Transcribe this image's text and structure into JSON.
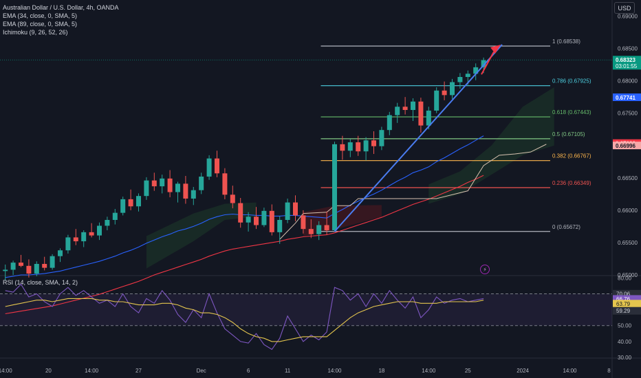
{
  "legend": {
    "symbol_title": "Australian Dollar / U.S. Dollar, 4h, OANDA",
    "indicators": [
      "EMA (34, close, 0, SMA, 5)",
      "EMA (89, close, 0, SMA, 5)",
      "Ichimoku (9, 26, 52, 26)"
    ]
  },
  "currency_button": "USD",
  "rsi_legend": "RSI (14, close, SMA, 14, 2)",
  "lightning_icon": "lightning-icon",
  "colors": {
    "background": "#131722",
    "up": "#26a69a",
    "down": "#ef5350",
    "ema34": "#2962ff",
    "ema89": "#f23645",
    "rsi": "#7e57c2",
    "rsi_ma": "#e5c64e",
    "trendline": "#4a7cf0",
    "arrow": "#f23645"
  },
  "chart_data": {
    "type": "candlestick",
    "price_axis": {
      "ticks": [
        {
          "value": 0.69,
          "label": "0.69000"
        },
        {
          "value": 0.685,
          "label": "0.68500"
        },
        {
          "value": 0.68,
          "label": "0.68000"
        },
        {
          "value": 0.675,
          "label": "0.67500"
        },
        {
          "value": 0.67,
          "label": "0.67000"
        },
        {
          "value": 0.665,
          "label": "0.66500"
        },
        {
          "value": 0.66,
          "label": "0.66000"
        },
        {
          "value": 0.655,
          "label": "0.65500"
        },
        {
          "value": 0.65,
          "label": "0.65000"
        }
      ],
      "range": [
        0.65,
        0.6925
      ]
    },
    "price_badges": [
      {
        "value": 0.68323,
        "label": "0.68323",
        "sub": "03:01:55",
        "color": "#089981"
      },
      {
        "value": 0.67741,
        "label": "0.67741",
        "color": "#2962ff"
      },
      {
        "value": 0.67033,
        "label": "0.67033",
        "color": "#f23645"
      },
      {
        "value": 0.66996,
        "label": "0.66996",
        "color": "#f7a9a8",
        "text_color": "#131722"
      }
    ],
    "time_axis": {
      "labels": [
        "14:00",
        "20",
        "14:00",
        "27",
        "Dec",
        "6",
        "11",
        "14:00",
        "18",
        "14:00",
        "25",
        "2024",
        "14:00",
        "8"
      ],
      "positions": [
        0,
        5.5,
        11,
        17,
        25,
        31,
        36,
        42,
        48,
        54,
        59,
        66,
        72,
        77
      ]
    },
    "fibonacci": [
      {
        "ratio": "1",
        "label": "1 (0.68538)",
        "value": 0.68538,
        "color": "#b2b5be"
      },
      {
        "ratio": "0.786",
        "label": "0.786 (0.67925)",
        "value": 0.67925,
        "color": "#4dd0e1"
      },
      {
        "ratio": "0.618",
        "label": "0.618 (0.67443)",
        "value": 0.67443,
        "color": "#66bb6a"
      },
      {
        "ratio": "0.5",
        "label": "0.5 (0.67105)",
        "value": 0.67105,
        "color": "#81c784"
      },
      {
        "ratio": "0.382",
        "label": "0.382 (0.66767)",
        "value": 0.66767,
        "color": "#ffb74d"
      },
      {
        "ratio": "0.236",
        "label": "0.236 (0.66349)",
        "value": 0.66349,
        "color": "#ef5350"
      },
      {
        "ratio": "0",
        "label": "0 (0.65672)",
        "value": 0.65672,
        "color": "#b2b5be"
      }
    ],
    "fib_start_bar": 42,
    "current_price": 0.68323,
    "candles": [
      [
        0.6506,
        0.6516,
        0.6492,
        0.6508
      ],
      [
        0.6508,
        0.6522,
        0.65,
        0.6519
      ],
      [
        0.6519,
        0.6531,
        0.6512,
        0.6514
      ],
      [
        0.6514,
        0.6524,
        0.6496,
        0.6502
      ],
      [
        0.6502,
        0.6521,
        0.6498,
        0.6517
      ],
      [
        0.6517,
        0.6528,
        0.6507,
        0.6511
      ],
      [
        0.6511,
        0.6532,
        0.6508,
        0.6529
      ],
      [
        0.6529,
        0.6541,
        0.652,
        0.6538
      ],
      [
        0.6538,
        0.6562,
        0.6533,
        0.6558
      ],
      [
        0.6558,
        0.6571,
        0.6546,
        0.6552
      ],
      [
        0.6552,
        0.6569,
        0.6543,
        0.6566
      ],
      [
        0.6566,
        0.658,
        0.6558,
        0.6561
      ],
      [
        0.6561,
        0.6581,
        0.6554,
        0.6576
      ],
      [
        0.6576,
        0.659,
        0.6569,
        0.6585
      ],
      [
        0.6585,
        0.6602,
        0.6578,
        0.6596
      ],
      [
        0.6596,
        0.6621,
        0.6592,
        0.6617
      ],
      [
        0.6617,
        0.6632,
        0.66,
        0.6606
      ],
      [
        0.6606,
        0.6626,
        0.6598,
        0.6622
      ],
      [
        0.6622,
        0.6651,
        0.6616,
        0.6646
      ],
      [
        0.6646,
        0.6658,
        0.663,
        0.6637
      ],
      [
        0.6637,
        0.6655,
        0.6626,
        0.6649
      ],
      [
        0.6649,
        0.6662,
        0.662,
        0.6628
      ],
      [
        0.6628,
        0.6644,
        0.6612,
        0.6641
      ],
      [
        0.6641,
        0.6653,
        0.661,
        0.6618
      ],
      [
        0.6618,
        0.6636,
        0.6608,
        0.6631
      ],
      [
        0.6631,
        0.6658,
        0.6625,
        0.6652
      ],
      [
        0.6652,
        0.6685,
        0.6647,
        0.668
      ],
      [
        0.668,
        0.6692,
        0.6651,
        0.6657
      ],
      [
        0.6657,
        0.6665,
        0.6617,
        0.6624
      ],
      [
        0.6624,
        0.6638,
        0.6603,
        0.6611
      ],
      [
        0.6611,
        0.6619,
        0.6573,
        0.6581
      ],
      [
        0.6581,
        0.6597,
        0.6567,
        0.659
      ],
      [
        0.659,
        0.6605,
        0.6571,
        0.6577
      ],
      [
        0.6577,
        0.6604,
        0.6574,
        0.6599
      ],
      [
        0.6599,
        0.6609,
        0.6561,
        0.6566
      ],
      [
        0.6566,
        0.6591,
        0.6548,
        0.6585
      ],
      [
        0.6585,
        0.6618,
        0.658,
        0.6612
      ],
      [
        0.6612,
        0.6623,
        0.6583,
        0.6592
      ],
      [
        0.6592,
        0.66,
        0.6564,
        0.6571
      ],
      [
        0.6571,
        0.6586,
        0.6557,
        0.6563
      ],
      [
        0.6563,
        0.6583,
        0.6554,
        0.6577
      ],
      [
        0.6577,
        0.6598,
        0.6562,
        0.6569
      ],
      [
        0.6569,
        0.6706,
        0.6567,
        0.6702
      ],
      [
        0.6702,
        0.6715,
        0.6678,
        0.6692
      ],
      [
        0.6692,
        0.671,
        0.6682,
        0.6705
      ],
      [
        0.6705,
        0.6715,
        0.6684,
        0.6691
      ],
      [
        0.6691,
        0.6713,
        0.6677,
        0.6708
      ],
      [
        0.6708,
        0.6722,
        0.6687,
        0.6699
      ],
      [
        0.6699,
        0.6729,
        0.6693,
        0.6724
      ],
      [
        0.6724,
        0.6752,
        0.6716,
        0.6747
      ],
      [
        0.6747,
        0.6766,
        0.6735,
        0.676
      ],
      [
        0.676,
        0.6775,
        0.6748,
        0.6755
      ],
      [
        0.6755,
        0.6773,
        0.6738,
        0.6768
      ],
      [
        0.6768,
        0.6774,
        0.672,
        0.6731
      ],
      [
        0.6731,
        0.676,
        0.6725,
        0.6754
      ],
      [
        0.6754,
        0.679,
        0.675,
        0.6785
      ],
      [
        0.6785,
        0.6799,
        0.677,
        0.6778
      ],
      [
        0.6778,
        0.6803,
        0.6772,
        0.6798
      ],
      [
        0.6798,
        0.6812,
        0.6788,
        0.6806
      ],
      [
        0.6806,
        0.6816,
        0.6794,
        0.6811
      ],
      [
        0.6811,
        0.6827,
        0.6801,
        0.6821
      ],
      [
        0.6821,
        0.6836,
        0.6812,
        0.6832
      ]
    ],
    "ema34": [
      0.6496,
      0.6498,
      0.65,
      0.65,
      0.6501,
      0.6502,
      0.6504,
      0.6506,
      0.6509,
      0.6512,
      0.6515,
      0.6518,
      0.6521,
      0.6525,
      0.6529,
      0.6534,
      0.6538,
      0.6543,
      0.6549,
      0.6554,
      0.6559,
      0.6563,
      0.6568,
      0.6571,
      0.6575,
      0.658,
      0.6586,
      0.659,
      0.6593,
      0.6594,
      0.6593,
      0.6593,
      0.6592,
      0.6592,
      0.6591,
      0.6591,
      0.6592,
      0.6592,
      0.6591,
      0.659,
      0.6589,
      0.6588,
      0.6595,
      0.6601,
      0.6608,
      0.6614,
      0.662,
      0.6625,
      0.6631,
      0.6638,
      0.6645,
      0.6651,
      0.6658,
      0.6662,
      0.6667,
      0.6675,
      0.6681,
      0.6688,
      0.6695,
      0.6701,
      0.6708,
      0.6715
    ],
    "ema89": [
      0.644,
      0.6442,
      0.6444,
      0.6446,
      0.6448,
      0.645,
      0.6452,
      0.6455,
      0.6458,
      0.6461,
      0.6464,
      0.6467,
      0.647,
      0.6474,
      0.6478,
      0.6482,
      0.6486,
      0.649,
      0.6495,
      0.65,
      0.6504,
      0.6508,
      0.6512,
      0.6516,
      0.652,
      0.6524,
      0.6529,
      0.6533,
      0.6537,
      0.654,
      0.6542,
      0.6544,
      0.6546,
      0.6548,
      0.655,
      0.6552,
      0.6555,
      0.6557,
      0.6559,
      0.656,
      0.6561,
      0.6562,
      0.6565,
      0.6569,
      0.6573,
      0.6577,
      0.6581,
      0.6585,
      0.6589,
      0.6594,
      0.6599,
      0.6604,
      0.6609,
      0.6613,
      0.6617,
      0.6622,
      0.6627,
      0.6632,
      0.6637,
      0.6643,
      0.6648,
      0.6654
    ],
    "ichimoku_lagging": [
      [
        35,
        0.6555
      ],
      [
        37,
        0.658
      ],
      [
        38,
        0.6595
      ],
      [
        41,
        0.6597
      ],
      [
        42,
        0.6607
      ],
      [
        44,
        0.6607
      ],
      [
        45,
        0.6618
      ],
      [
        55,
        0.6618
      ],
      [
        59,
        0.663
      ],
      [
        61,
        0.6669
      ],
      [
        63,
        0.6685
      ],
      [
        65,
        0.6687
      ],
      [
        67,
        0.669
      ],
      [
        69,
        0.6702
      ]
    ],
    "cloud": {
      "bull": [
        [
          18,
          0.651,
          0.656
        ],
        [
          24,
          0.6552,
          0.6595
        ],
        [
          28,
          0.6585,
          0.661
        ],
        [
          32,
          0.659,
          0.6612
        ]
      ],
      "bear": [
        [
          38,
          0.6597,
          0.656
        ],
        [
          42,
          0.6607,
          0.657
        ],
        [
          48,
          0.6608,
          0.659
        ]
      ],
      "bull2": [
        [
          54,
          0.664,
          0.661
        ],
        [
          58,
          0.666,
          0.6625
        ],
        [
          62,
          0.67,
          0.6655
        ],
        [
          66,
          0.676,
          0.6685
        ],
        [
          70,
          0.679,
          0.67
        ]
      ]
    },
    "rsi_axis": {
      "ticks": [
        {
          "value": 80,
          "label": "80.00"
        },
        {
          "value": 70,
          "label": "70.00"
        },
        {
          "value": 60,
          "label": "60.00"
        },
        {
          "value": 50,
          "label": "50.00"
        },
        {
          "value": 40,
          "label": "40.00"
        },
        {
          "value": 30,
          "label": "30.00"
        }
      ],
      "range": [
        30,
        81
      ],
      "upper": 70,
      "lower": 50
    },
    "rsi_badges": [
      {
        "value": 70.06,
        "label": "70.06",
        "color": "#2a2e39",
        "text_color": "#d1d4dc"
      },
      {
        "value": 66.76,
        "label": "66.76",
        "color": "#7e57c2",
        "text_color": "#ffffff"
      },
      {
        "value": 63.79,
        "label": "63.79",
        "color": "#e5c64e",
        "text_color": "#131722"
      },
      {
        "value": 59.29,
        "label": "59.29",
        "color": "#2a2e39",
        "text_color": "#d1d4dc"
      }
    ],
    "rsi": [
      72,
      71,
      76,
      68,
      70,
      65,
      62,
      70,
      74,
      69,
      72,
      68,
      64,
      66,
      62,
      70,
      62,
      58,
      67,
      64,
      72,
      66,
      57,
      52,
      60,
      55,
      70,
      58,
      48,
      44,
      40,
      39,
      45,
      38,
      35,
      42,
      56,
      48,
      40,
      44,
      41,
      46,
      74,
      72,
      66,
      70,
      62,
      70,
      64,
      72,
      66,
      61,
      68,
      55,
      60,
      68,
      64,
      66,
      67,
      65,
      66,
      67
    ],
    "rsi_ma": [
      62,
      63,
      64,
      65,
      66,
      66,
      65,
      66,
      67,
      67,
      67,
      67,
      66,
      66,
      65,
      65,
      64,
      63,
      63,
      63,
      64,
      64,
      63,
      61,
      60,
      58,
      58,
      57,
      55,
      52,
      48,
      45,
      43,
      42,
      40,
      40,
      41,
      42,
      43,
      43,
      43,
      43,
      47,
      51,
      55,
      58,
      60,
      62,
      63,
      64,
      65,
      65,
      65,
      64,
      64,
      64,
      65,
      65,
      65,
      65,
      65,
      66
    ]
  }
}
